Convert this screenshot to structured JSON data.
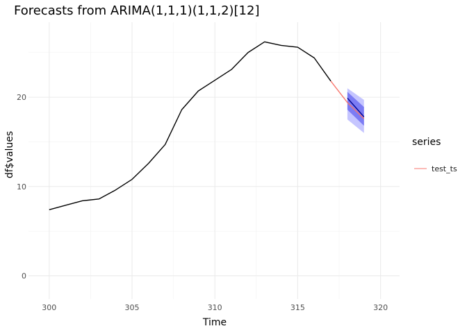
{
  "chart_data": {
    "type": "line",
    "title": "Forecasts from ARIMA(1,1,1)(1,1,2)[12]",
    "xlabel": "Time",
    "ylabel": "df$values",
    "xlim": [
      298.75,
      321.15
    ],
    "ylim": [
      -2.6,
      28.4
    ],
    "x_ticks": [
      300,
      305,
      310,
      315,
      320
    ],
    "x_tick_labels": [
      "300",
      "305",
      "310",
      "315",
      "320"
    ],
    "y_ticks": [
      0,
      10,
      20
    ],
    "y_tick_labels": [
      "0",
      "10",
      "20"
    ],
    "grid": true,
    "legend": {
      "title": "series",
      "position": "right",
      "entries": [
        {
          "label": "test_ts",
          "color": "#F8766D"
        }
      ]
    },
    "series": [
      {
        "name": "observed",
        "color": "#000000",
        "x": [
          300,
          301,
          302,
          303,
          304,
          305,
          306,
          307,
          308,
          309,
          310,
          311,
          312,
          313,
          314,
          315,
          316,
          317
        ],
        "y": [
          7.4,
          7.9,
          8.4,
          8.6,
          9.6,
          10.8,
          12.6,
          14.7,
          18.6,
          20.7,
          21.9,
          23.1,
          25.0,
          26.2,
          25.8,
          25.6,
          24.4,
          21.8
        ]
      },
      {
        "name": "test_ts",
        "color": "#F8766D",
        "x": [
          317,
          318,
          319
        ],
        "y": [
          21.8,
          19.4,
          17.6
        ]
      },
      {
        "name": "forecast",
        "color": "#00008B",
        "x": [
          318,
          319
        ],
        "y": [
          19.9,
          17.8
        ]
      }
    ],
    "intervals": [
      {
        "level": 95,
        "color": "#BBBBFF",
        "x": [
          318,
          319
        ],
        "lower": [
          17.5,
          16.0
        ],
        "upper": [
          21.0,
          19.7
        ]
      },
      {
        "level": 80,
        "color": "#6E6EF2",
        "x": [
          318,
          319
        ],
        "lower": [
          18.6,
          16.8
        ],
        "upper": [
          20.6,
          18.9
        ]
      }
    ]
  }
}
